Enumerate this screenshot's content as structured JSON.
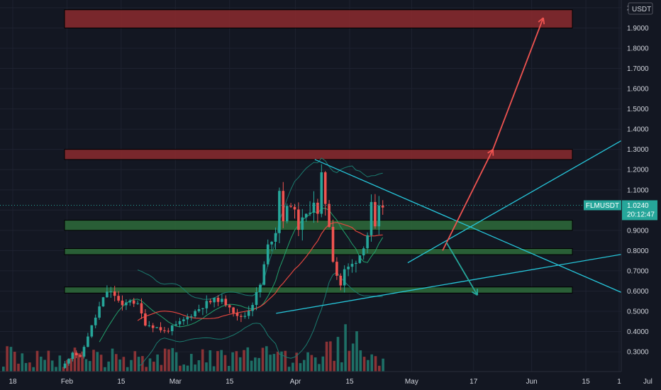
{
  "chart_data": {
    "type": "candlestick",
    "symbol": "FLMUSDT",
    "currency": "USDT",
    "last_price": "1.0240",
    "countdown": "20:12:47",
    "y_axis": {
      "ticks": [
        "2",
        "1.9000",
        "1.8000",
        "1.7000",
        "1.6000",
        "1.5000",
        "1.4000",
        "1.3000",
        "1.2000",
        "1.1000",
        "1.0000",
        "0.9000",
        "0.8000",
        "0.7000",
        "0.6000",
        "0.5000",
        "0.4000",
        "0.3000"
      ],
      "range": [
        0.22,
        2.0
      ]
    },
    "x_axis": {
      "ticks": [
        "18",
        "Feb",
        "15",
        "Mar",
        "15",
        "Apr",
        "15",
        "May",
        "17",
        "Jun",
        "15",
        "Jul",
        "1"
      ]
    },
    "zones": [
      {
        "kind": "resistance",
        "low": 1.9,
        "high": 1.99,
        "color": "#8c2a2e"
      },
      {
        "kind": "resistance",
        "low": 1.25,
        "high": 1.3,
        "color": "#8c2a2e"
      },
      {
        "kind": "support",
        "low": 0.9,
        "high": 0.95,
        "color": "#2e6b3a"
      },
      {
        "kind": "support",
        "low": 0.78,
        "high": 0.81,
        "color": "#2e6b3a"
      },
      {
        "kind": "support",
        "low": 0.59,
        "high": 0.62,
        "color": "#2e6b3a"
      }
    ],
    "trendlines": [
      {
        "from": [
          "Apr 6",
          1.25
        ],
        "to": [
          "Jul 3",
          0.52
        ],
        "color": "#26c6da"
      },
      {
        "from": [
          "Mar 27",
          0.49
        ],
        "to": [
          "Jul 3",
          0.81
        ],
        "color": "#26c6da"
      },
      {
        "from": [
          "Apr 30",
          0.74
        ],
        "to": [
          "Jul 3",
          1.44
        ],
        "color": "#26c6da"
      }
    ],
    "arrows": [
      {
        "from": [
          "May 9",
          0.8
        ],
        "to": [
          "May 22",
          1.3
        ],
        "color": "#ef5350"
      },
      {
        "from": [
          "May 22",
          1.3
        ],
        "to": [
          "Jun 4",
          1.95
        ],
        "color": "#ef5350"
      },
      {
        "from": [
          "May 10",
          0.84
        ],
        "to": [
          "May 18",
          0.58
        ],
        "color": "#26a69a"
      }
    ],
    "colors": {
      "up": "#26a69a",
      "down": "#ef5350",
      "volume_up": "#1e6f66",
      "volume_down": "#8b3336",
      "band": "#1b7a6e",
      "ma_fast": "#22a06b",
      "ma_slow": "#e0463f",
      "grid": "#1e2230"
    }
  }
}
